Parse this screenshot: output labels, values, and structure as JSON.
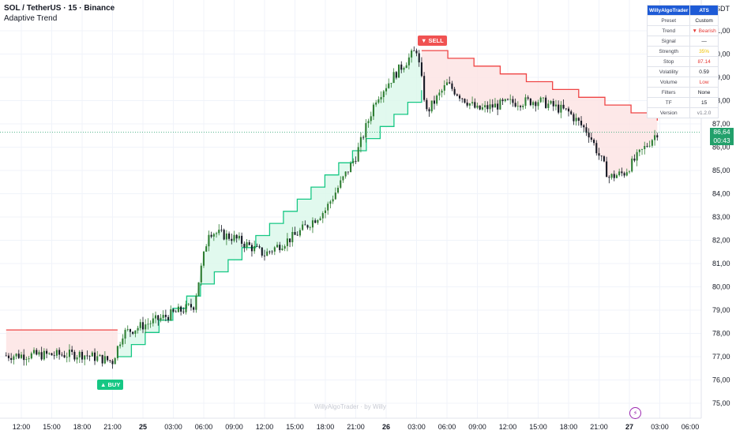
{
  "header": {
    "symbol_line": "SOL / TetherUS · 15 · Binance",
    "indicator_name": "Adaptive Trend"
  },
  "currency": "USDT",
  "price_tags": {
    "last": "86,64",
    "countdown": "00:43"
  },
  "signals": {
    "sell": "▼ SELL",
    "buy": "▲ BUY"
  },
  "watermark": "WillyAlgoTrader · by Willy",
  "icons": {
    "alert": "lightning-icon"
  },
  "colors": {
    "bull_line": "#16c784",
    "bull_fill": "#d9f7ea",
    "bear_line": "#ef4444",
    "bear_fill": "#fde2e2",
    "candle": "#131722",
    "price_line": "#22a06b"
  },
  "info_table": {
    "header_left": "WillyAlgoTrader",
    "header_right": "ATS",
    "rows": [
      {
        "key": "Preset",
        "value": "Custom",
        "color": "#131722"
      },
      {
        "key": "Trend",
        "value": "▼ Bearish",
        "color": "#e53935"
      },
      {
        "key": "Signal",
        "value": "—",
        "color": "#131722"
      },
      {
        "key": "Strength",
        "value": "35%",
        "color": "#f2c200"
      },
      {
        "key": "Stop",
        "value": "87.14",
        "color": "#e53935"
      },
      {
        "key": "Volatility",
        "value": "0.59",
        "color": "#131722"
      },
      {
        "key": "Volume",
        "value": "Low",
        "color": "#e53935"
      },
      {
        "key": "Filters",
        "value": "None",
        "color": "#131722"
      },
      {
        "key": "TF",
        "value": "15",
        "color": "#131722"
      },
      {
        "key": "Version",
        "value": "v1.2.0",
        "color": "#787b86"
      }
    ]
  },
  "chart_data": {
    "type": "candlestick",
    "title": "SOL / TetherUS · 15 · Binance",
    "x_tick_labels": [
      "12:00",
      "15:00",
      "18:00",
      "21:00",
      "25",
      "03:00",
      "06:00",
      "09:00",
      "12:00",
      "15:00",
      "18:00",
      "21:00",
      "26",
      "03:00",
      "06:00",
      "09:00",
      "12:00",
      "15:00",
      "18:00",
      "21:00",
      "27",
      "03:00",
      "06:00"
    ],
    "y_tick_labels": [
      "75,00",
      "76,00",
      "77,00",
      "78,00",
      "79,00",
      "80,00",
      "81,00",
      "82,00",
      "83,00",
      "84,00",
      "85,00",
      "86,00",
      "87,00",
      "88,00",
      "89,00",
      "90,00",
      "91,00"
    ],
    "ylim": [
      74.6,
      91.6
    ],
    "last_price": 86.64,
    "trend_bands": [
      {
        "direction": "bearish",
        "from": "10:30 (24th)",
        "to": "21:30 (24th)",
        "stop_level": 78.15
      },
      {
        "direction": "bullish",
        "from": "21:30 (24th)",
        "to": "03:30 (26th)",
        "stop_start": 77.0,
        "stop_end": 88.45
      },
      {
        "direction": "bearish",
        "from": "03:30 (26th)",
        "to": "02:45 (27th)",
        "stop_start": 90.15,
        "stop_end": 87.14
      }
    ],
    "key_points_close": [
      {
        "t": "10:30 (24th)",
        "close": 77.05
      },
      {
        "t": "18:00 (24th)",
        "close": 77.1
      },
      {
        "t": "21:00 (24th)",
        "close": 76.8
      },
      {
        "t": "22:00 (24th)",
        "close": 78.0
      },
      {
        "t": "05:00 (25th)",
        "close": 79.2
      },
      {
        "t": "06:30 (25th)",
        "close": 82.4
      },
      {
        "t": "09:00 (25th)",
        "close": 82.1
      },
      {
        "t": "12:00 (25th)",
        "close": 81.4
      },
      {
        "t": "15:00 (25th)",
        "close": 82.2
      },
      {
        "t": "18:00 (25th)",
        "close": 83.3
      },
      {
        "t": "21:00 (25th)",
        "close": 85.6
      },
      {
        "t": "23:00 (25th)",
        "close": 88.1
      },
      {
        "t": "01:00 (26th)",
        "close": 89.2
      },
      {
        "t": "03:00 (26th)",
        "close": 90.2
      },
      {
        "t": "04:00 (26th)",
        "close": 87.5
      },
      {
        "t": "06:00 (26th)",
        "close": 88.7
      },
      {
        "t": "09:00 (26th)",
        "close": 87.6
      },
      {
        "t": "12:00 (26th)",
        "close": 87.9
      },
      {
        "t": "15:00 (26th)",
        "close": 88.0
      },
      {
        "t": "18:00 (26th)",
        "close": 87.5
      },
      {
        "t": "20:00 (26th)",
        "close": 86.6
      },
      {
        "t": "22:00 (26th)",
        "close": 84.7
      },
      {
        "t": "23:30 (26th)",
        "close": 84.9
      },
      {
        "t": "02:45 (27th)",
        "close": 86.64
      }
    ]
  }
}
